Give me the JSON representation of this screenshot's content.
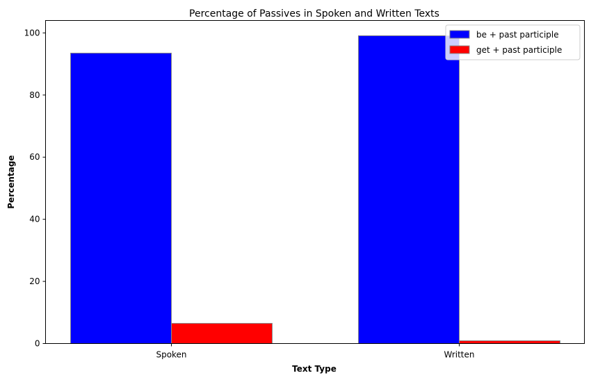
{
  "chart_data": {
    "type": "bar",
    "title": "Percentage of Passives in Spoken and Written Texts",
    "xlabel": "Text Type",
    "ylabel": "Percentage",
    "categories": [
      "Spoken",
      "Written"
    ],
    "series": [
      {
        "name": "be + past participle",
        "values": [
          93.5,
          99.1
        ],
        "color": "#0000ff"
      },
      {
        "name": "get + past participle",
        "values": [
          6.5,
          0.9
        ],
        "color": "#ff0000"
      }
    ],
    "ylim": [
      0,
      104
    ],
    "yticks": [
      0,
      20,
      40,
      60,
      80,
      100
    ],
    "grid": false,
    "legend_position": "top-right",
    "bar_edge_color": "#888888"
  }
}
